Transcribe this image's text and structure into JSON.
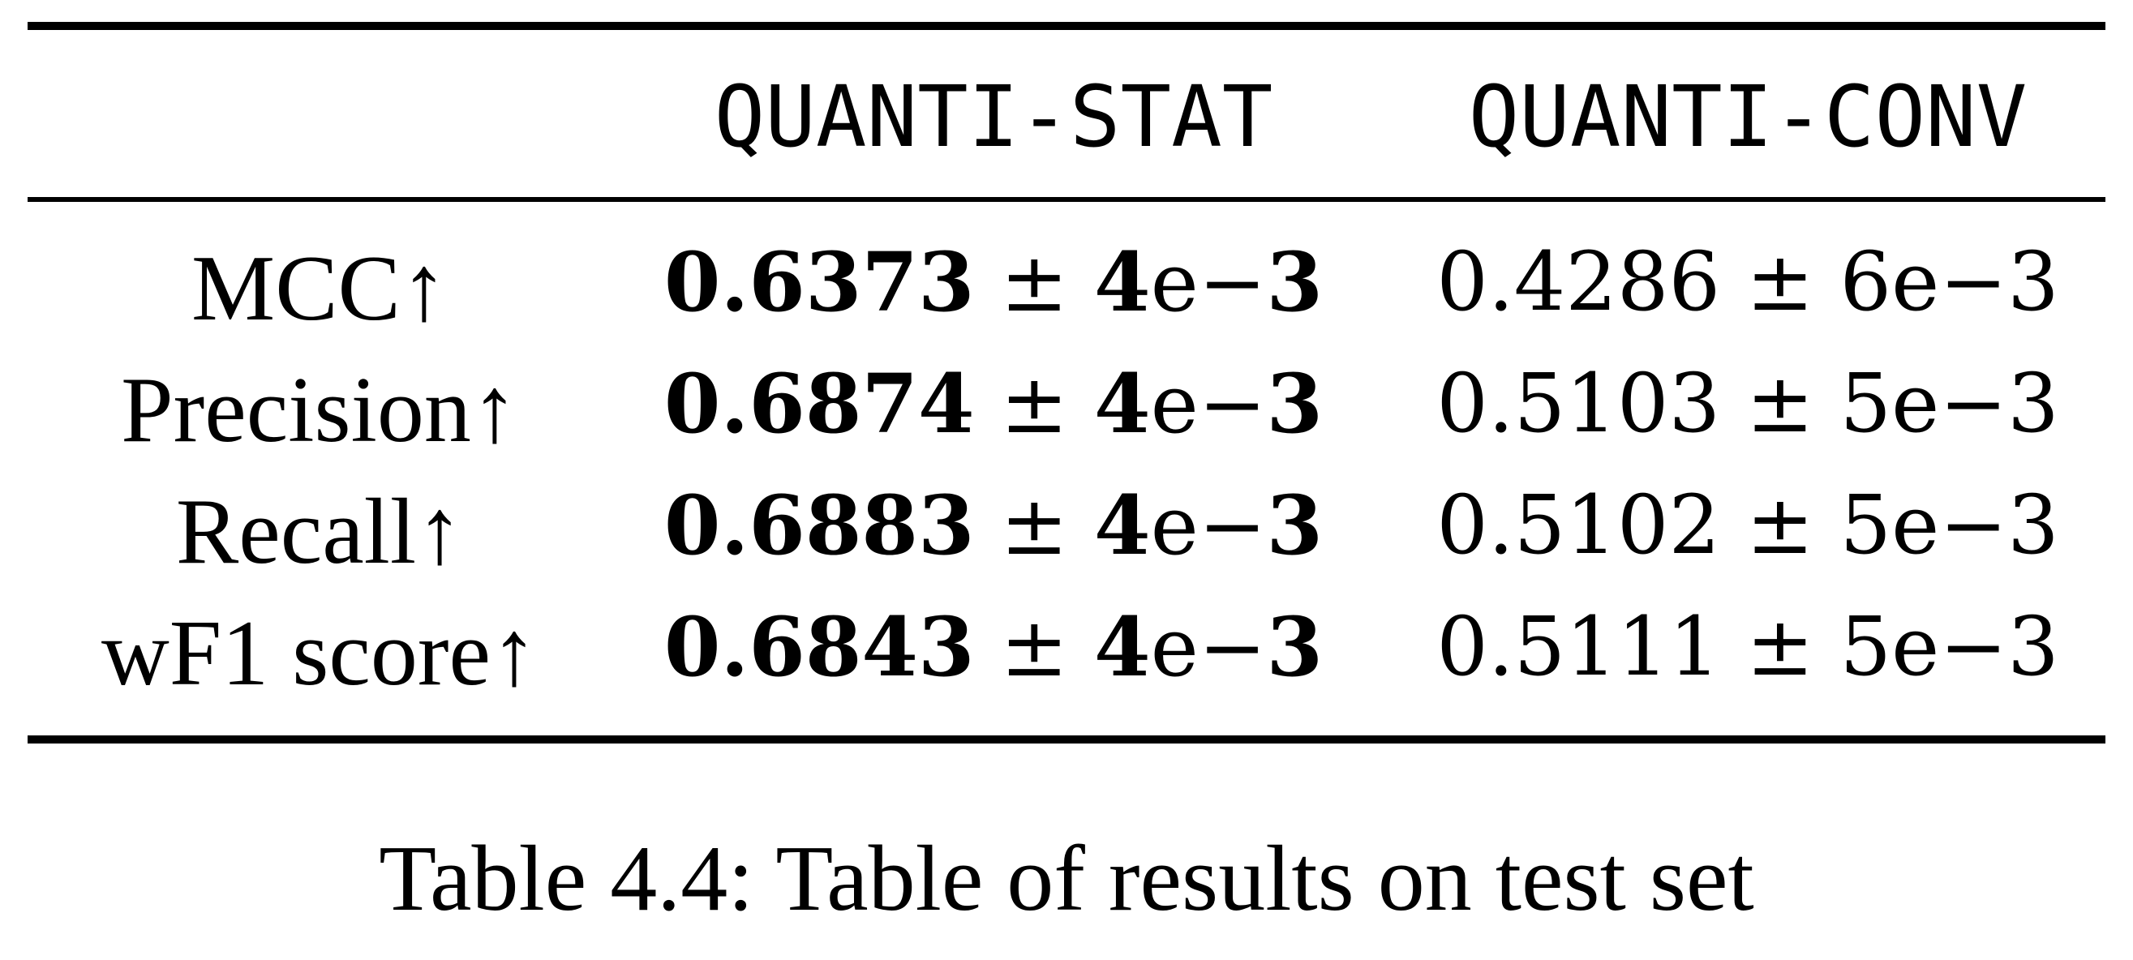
{
  "table": {
    "headers": [
      "",
      "QUANTI-STAT",
      "QUANTI-CONV"
    ],
    "rows": [
      {
        "label": "MCC↑",
        "stat": {
          "mean": "0.6373",
          "pm": "±",
          "err_digit": "4",
          "err_e": "e−",
          "err_exp": "3"
        },
        "conv": {
          "mean": "0.4286",
          "pm": "±",
          "err_digit": "6",
          "err_e": "e−",
          "err_exp": "3"
        }
      },
      {
        "label": "Precision↑",
        "stat": {
          "mean": "0.6874",
          "pm": "±",
          "err_digit": "4",
          "err_e": "e−",
          "err_exp": "3"
        },
        "conv": {
          "mean": "0.5103",
          "pm": "±",
          "err_digit": "5",
          "err_e": "e−",
          "err_exp": "3"
        }
      },
      {
        "label": "Recall↑",
        "stat": {
          "mean": "0.6883",
          "pm": "±",
          "err_digit": "4",
          "err_e": "e−",
          "err_exp": "3"
        },
        "conv": {
          "mean": "0.5102",
          "pm": "±",
          "err_digit": "5",
          "err_e": "e−",
          "err_exp": "3"
        }
      },
      {
        "label": "wF1 score↑",
        "stat": {
          "mean": "0.6843",
          "pm": "±",
          "err_digit": "4",
          "err_e": "e−",
          "err_exp": "3"
        },
        "conv": {
          "mean": "0.5111",
          "pm": "±",
          "err_digit": "5",
          "err_e": "e−",
          "err_exp": "3"
        }
      }
    ]
  },
  "caption": {
    "prefix": "Table 4.4:",
    "text": "Table of results on test set"
  }
}
